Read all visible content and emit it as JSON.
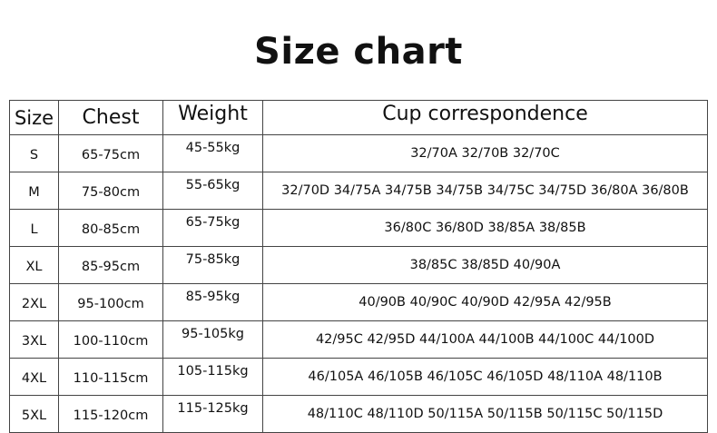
{
  "title": "Size chart",
  "headers": [
    "Size",
    "Chest",
    "Weight",
    "Cup correspondence"
  ],
  "rows": [
    [
      "S",
      "65-75cm",
      "45-55kg",
      "32/70A 32/70B 32/70C"
    ],
    [
      "M",
      "75-80cm",
      "55-65kg",
      "32/70D 34/75A 34/75B 34/75B 34/75C 34/75D 36/80A 36/80B"
    ],
    [
      "L",
      "80-85cm",
      "65-75kg",
      "36/80C 36/80D 38/85A 38/85B"
    ],
    [
      "XL",
      "85-95cm",
      "75-85kg",
      "38/85C 38/85D 40/90A"
    ],
    [
      "2XL",
      "95-100cm",
      "85-95kg",
      "40/90B 40/90C 40/90D 42/95A  42/95B"
    ],
    [
      "3XL",
      "100-110cm",
      "95-105kg",
      "42/95C 42/95D 44/100A 44/100B 44/100C 44/100D"
    ],
    [
      "4XL",
      "110-115cm",
      "105-115kg",
      "46/105A 46/105B 46/105C 46/105D 48/110A 48/110B"
    ],
    [
      "5XL",
      "115-120cm",
      "115-125kg",
      "48/110C 48/110D 50/115A 50/115B 50/115C 50/115D"
    ]
  ]
}
